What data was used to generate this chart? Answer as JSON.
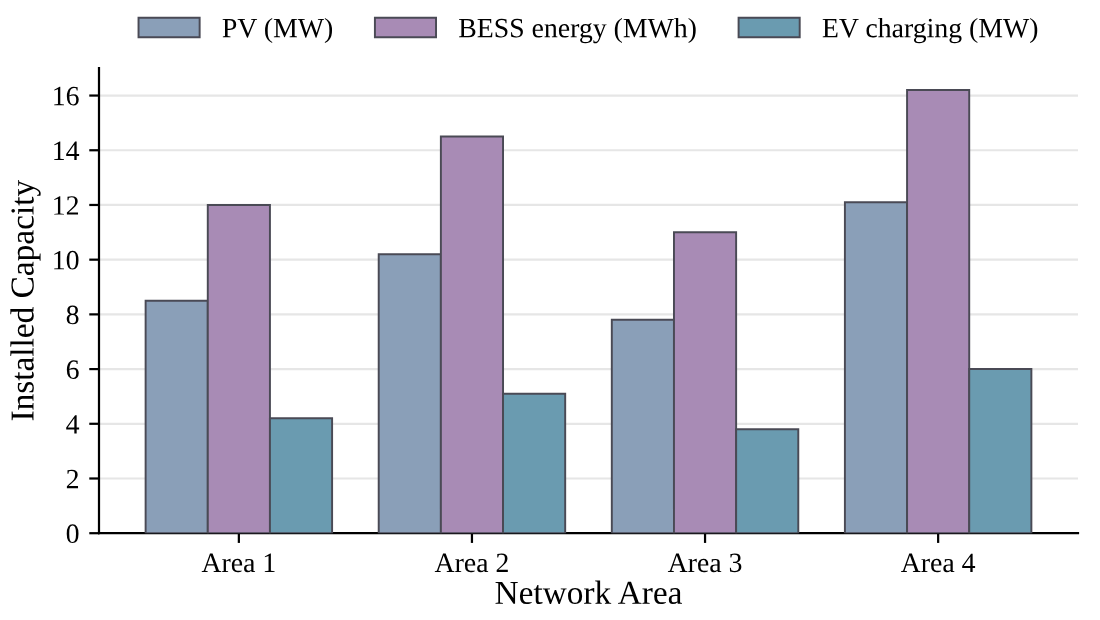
{
  "chart_data": {
    "type": "bar",
    "xlabel": "Network Area",
    "ylabel": "Installed Capacity",
    "categories": [
      "Area 1",
      "Area 2",
      "Area 3",
      "Area 4"
    ],
    "series": [
      {
        "name": "PV (MW)",
        "color": "#8a9fb8",
        "values": [
          8.5,
          10.2,
          7.8,
          12.1
        ]
      },
      {
        "name": "BESS energy (MWh)",
        "color": "#a88bb5",
        "values": [
          12.0,
          14.5,
          11.0,
          16.2
        ]
      },
      {
        "name": "EV charging (MW)",
        "color": "#6a9bb0",
        "values": [
          4.2,
          5.1,
          3.8,
          6.0
        ]
      }
    ],
    "ylim": [
      0,
      17
    ],
    "yticks": [
      0,
      2,
      4,
      6,
      8,
      10,
      12,
      14,
      16
    ],
    "grid": "y",
    "legend": "top"
  }
}
